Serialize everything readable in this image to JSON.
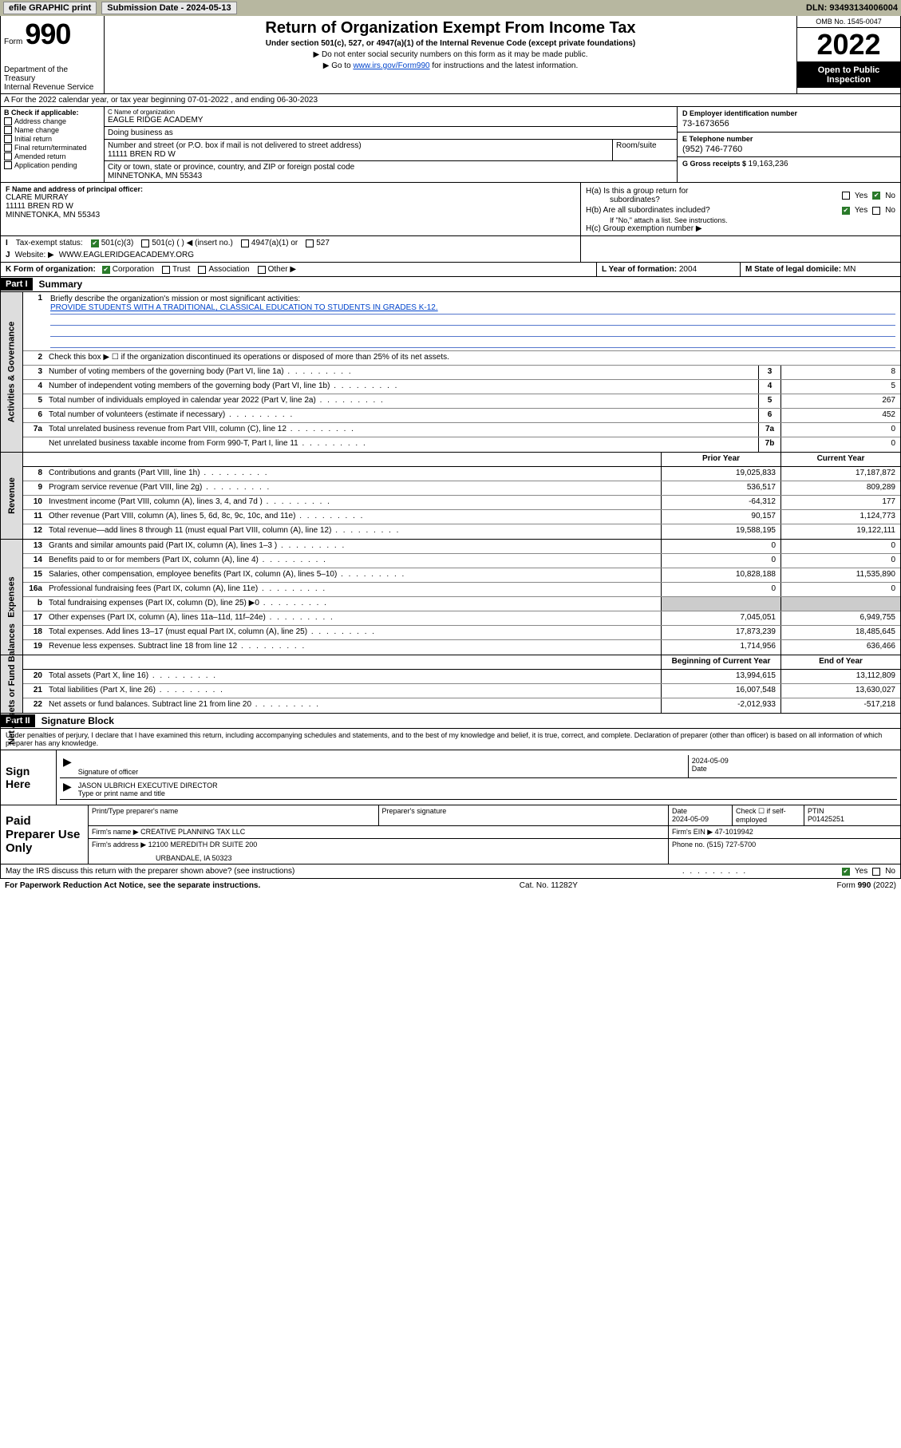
{
  "topbar": {
    "efile": "efile GRAPHIC print",
    "sub_label": "Submission Date - 2024-05-13",
    "dln": "DLN: 93493134006004"
  },
  "header": {
    "form_word": "Form",
    "form_num": "990",
    "dept": "Department of the Treasury",
    "irs": "Internal Revenue Service",
    "title": "Return of Organization Exempt From Income Tax",
    "subtitle": "Under section 501(c), 527, or 4947(a)(1) of the Internal Revenue Code (except private foundations)",
    "note1": "▶ Do not enter social security numbers on this form as it may be made public.",
    "note2_pre": "▶ Go to ",
    "note2_link": "www.irs.gov/Form990",
    "note2_post": " for instructions and the latest information.",
    "omb": "OMB No. 1545-0047",
    "year": "2022",
    "open": "Open to Public Inspection"
  },
  "row_a": "A For the 2022 calendar year, or tax year beginning 07-01-2022   , and ending 06-30-2023",
  "col_b": {
    "hdr": "B Check if applicable:",
    "items": [
      "Address change",
      "Name change",
      "Initial return",
      "Final return/terminated",
      "Amended return",
      "Application pending"
    ]
  },
  "col_c": {
    "name_lab": "C Name of organization",
    "name": "EAGLE RIDGE ACADEMY",
    "dba_lab": "Doing business as",
    "addr_lab": "Number and street (or P.O. box if mail is not delivered to street address)",
    "addr": "11111 BREN RD W",
    "room_lab": "Room/suite",
    "city_lab": "City or town, state or province, country, and ZIP or foreign postal code",
    "city": "MINNETONKA, MN  55343"
  },
  "col_d": {
    "d_lab": "D Employer identification number",
    "d_val": "73-1673656",
    "e_lab": "E Telephone number",
    "e_val": "(952) 746-7760",
    "g_lab": "G Gross receipts $ ",
    "g_val": "19,163,236"
  },
  "block_f": {
    "lab": "F Name and address of principal officer:",
    "name": "CLARE MURRAY",
    "addr1": "11111 BREN RD W",
    "addr2": "MINNETONKA, MN  55343"
  },
  "block_h": {
    "ha_lab": "H(a)  Is this a group return for",
    "ha_sub": "subordinates?",
    "hb_lab": "H(b)  Are all subordinates included?",
    "hb_note": "If \"No,\" attach a list. See instructions.",
    "hc_lab": "H(c)  Group exemption number ▶",
    "yes": "Yes",
    "no": "No"
  },
  "row_i": {
    "lab": "I",
    "text": "Tax-exempt status:",
    "opts": [
      "501(c)(3)",
      "501(c) (  ) ◀ (insert no.)",
      "4947(a)(1) or",
      "527"
    ]
  },
  "row_j": {
    "lab": "J",
    "text": "Website: ▶",
    "val": "WWW.EAGLERIDGEACADEMY.ORG"
  },
  "row_k": {
    "k_lab": "K Form of organization:",
    "k_opts": [
      "Corporation",
      "Trust",
      "Association",
      "Other ▶"
    ],
    "l_lab": "L Year of formation: ",
    "l_val": "2004",
    "m_lab": "M State of legal domicile: ",
    "m_val": "MN"
  },
  "part1": {
    "hdr": "Part I",
    "title": "Summary"
  },
  "summary": {
    "q1_lab": "Briefly describe the organization's mission or most significant activities:",
    "q1_val": "PROVIDE STUDENTS WITH A TRADITIONAL, CLASSICAL EDUCATION TO STUDENTS IN GRADES K-12.",
    "q2": "Check this box ▶ ☐  if the organization discontinued its operations or disposed of more than 25% of its net assets."
  },
  "sections": [
    {
      "tab": "Activities & Governance",
      "rows": [
        {
          "n": "1",
          "desc_html": "mission",
          "mini": "",
          "py": "",
          "cy": ""
        },
        {
          "n": "2",
          "desc": "check",
          "mini": "",
          "py": "",
          "cy": ""
        },
        {
          "n": "3",
          "desc": "Number of voting members of the governing body (Part VI, line 1a)",
          "mini": "3",
          "py": "",
          "cy": "8"
        },
        {
          "n": "4",
          "desc": "Number of independent voting members of the governing body (Part VI, line 1b)",
          "mini": "4",
          "py": "",
          "cy": "5"
        },
        {
          "n": "5",
          "desc": "Total number of individuals employed in calendar year 2022 (Part V, line 2a)",
          "mini": "5",
          "py": "",
          "cy": "267"
        },
        {
          "n": "6",
          "desc": "Total number of volunteers (estimate if necessary)",
          "mini": "6",
          "py": "",
          "cy": "452"
        },
        {
          "n": "7a",
          "desc": "Total unrelated business revenue from Part VIII, column (C), line 12",
          "mini": "7a",
          "py": "",
          "cy": "0"
        },
        {
          "n": "",
          "desc": "Net unrelated business taxable income from Form 990-T, Part I, line 11",
          "mini": "7b",
          "py": "",
          "cy": "0"
        }
      ],
      "single_col": true
    },
    {
      "tab": "Revenue",
      "header": {
        "py": "Prior Year",
        "cy": "Current Year"
      },
      "rows": [
        {
          "n": "8",
          "desc": "Contributions and grants (Part VIII, line 1h)",
          "py": "19,025,833",
          "cy": "17,187,872"
        },
        {
          "n": "9",
          "desc": "Program service revenue (Part VIII, line 2g)",
          "py": "536,517",
          "cy": "809,289"
        },
        {
          "n": "10",
          "desc": "Investment income (Part VIII, column (A), lines 3, 4, and 7d )",
          "py": "-64,312",
          "cy": "177"
        },
        {
          "n": "11",
          "desc": "Other revenue (Part VIII, column (A), lines 5, 6d, 8c, 9c, 10c, and 11e)",
          "py": "90,157",
          "cy": "1,124,773"
        },
        {
          "n": "12",
          "desc": "Total revenue—add lines 8 through 11 (must equal Part VIII, column (A), line 12)",
          "py": "19,588,195",
          "cy": "19,122,111"
        }
      ]
    },
    {
      "tab": "Expenses",
      "rows": [
        {
          "n": "13",
          "desc": "Grants and similar amounts paid (Part IX, column (A), lines 1–3 )",
          "py": "0",
          "cy": "0"
        },
        {
          "n": "14",
          "desc": "Benefits paid to or for members (Part IX, column (A), line 4)",
          "py": "0",
          "cy": "0"
        },
        {
          "n": "15",
          "desc": "Salaries, other compensation, employee benefits (Part IX, column (A), lines 5–10)",
          "py": "10,828,188",
          "cy": "11,535,890"
        },
        {
          "n": "16a",
          "desc": "Professional fundraising fees (Part IX, column (A), line 11e)",
          "py": "0",
          "cy": "0"
        },
        {
          "n": "b",
          "desc": "Total fundraising expenses (Part IX, column (D), line 25) ▶0",
          "py": "shade",
          "cy": "shade"
        },
        {
          "n": "17",
          "desc": "Other expenses (Part IX, column (A), lines 11a–11d, 11f–24e)",
          "py": "7,045,051",
          "cy": "6,949,755"
        },
        {
          "n": "18",
          "desc": "Total expenses. Add lines 13–17 (must equal Part IX, column (A), line 25)",
          "py": "17,873,239",
          "cy": "18,485,645"
        },
        {
          "n": "19",
          "desc": "Revenue less expenses. Subtract line 18 from line 12",
          "py": "1,714,956",
          "cy": "636,466"
        }
      ]
    },
    {
      "tab": "Net Assets or Fund Balances",
      "header": {
        "py": "Beginning of Current Year",
        "cy": "End of Year"
      },
      "rows": [
        {
          "n": "20",
          "desc": "Total assets (Part X, line 16)",
          "py": "13,994,615",
          "cy": "13,112,809"
        },
        {
          "n": "21",
          "desc": "Total liabilities (Part X, line 26)",
          "py": "16,007,548",
          "cy": "13,630,027"
        },
        {
          "n": "22",
          "desc": "Net assets or fund balances. Subtract line 21 from line 20",
          "py": "-2,012,933",
          "cy": "-517,218"
        }
      ]
    }
  ],
  "part2": {
    "hdr": "Part II",
    "title": "Signature Block"
  },
  "sig": {
    "decl": "Under penalties of perjury, I declare that I have examined this return, including accompanying schedules and statements, and to the best of my knowledge and belief, it is true, correct, and complete. Declaration of preparer (other than officer) is based on all information of which preparer has any knowledge.",
    "sign_here": "Sign Here",
    "sig_officer": "Signature of officer",
    "date": "Date",
    "date_val": "2024-05-09",
    "name_title": "JASON ULBRICH  EXECUTIVE DIRECTOR",
    "type_name": "Type or print name and title"
  },
  "paid": {
    "label": "Paid Preparer Use Only",
    "h1": "Print/Type preparer's name",
    "h2": "Preparer's signature",
    "h3": "Date",
    "h3v": "2024-05-09",
    "h4": "Check ☐ if self-employed",
    "h5": "PTIN",
    "h5v": "P01425251",
    "firm_name_lab": "Firm's name    ▶",
    "firm_name": "CREATIVE PLANNING TAX LLC",
    "firm_ein_lab": "Firm's EIN ▶",
    "firm_ein": "47-1019942",
    "firm_addr_lab": "Firm's address ▶",
    "firm_addr1": "12100 MEREDITH DR SUITE 200",
    "firm_addr2": "URBANDALE, IA  50323",
    "phone_lab": "Phone no.",
    "phone": "(515) 727-5700"
  },
  "may_irs": "May the IRS discuss this return with the preparer shown above? (see instructions)",
  "footer": {
    "left": "For Paperwork Reduction Act Notice, see the separate instructions.",
    "mid": "Cat. No. 11282Y",
    "right": "Form 990 (2022)"
  }
}
